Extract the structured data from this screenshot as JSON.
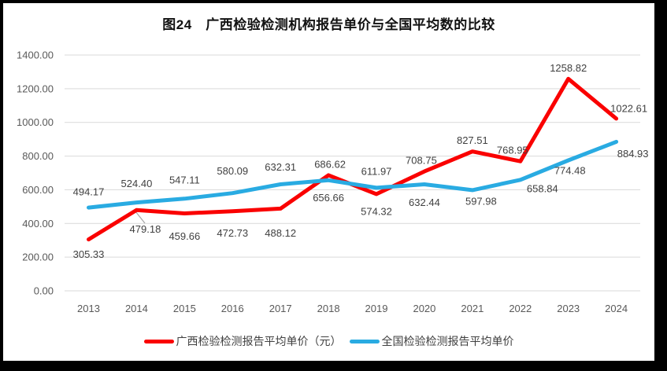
{
  "frame": {
    "border_color": "#000000",
    "background_color": "#FFFFFF"
  },
  "chart": {
    "title": "图24　广西检验检测机构报告单价与全国平均数的比较",
    "legend": [
      {
        "label": "广西检验检测报告平均单价（元）",
        "color": "#FA0000"
      },
      {
        "label": "全国检验检测报告平均单价",
        "color": "#29ABE2"
      }
    ]
  },
  "chart_data": {
    "type": "line",
    "title": "图24　广西检验检测机构报告单价与全国平均数的比较",
    "categories": [
      "2013",
      "2014",
      "2015",
      "2016",
      "2017",
      "2018",
      "2019",
      "2020",
      "2021",
      "2022",
      "2023",
      "2024"
    ],
    "series": [
      {
        "name": "广西检验检测报告平均单价（元）",
        "color": "#FA0000",
        "values": [
          305.33,
          479.18,
          459.66,
          472.73,
          488.12,
          686.62,
          574.32,
          708.75,
          827.51,
          768.95,
          1258.82,
          1022.61
        ]
      },
      {
        "name": "全国检验检测报告平均单价",
        "color": "#29ABE2",
        "values": [
          494.17,
          524.4,
          547.11,
          580.09,
          632.31,
          656.66,
          611.97,
          632.44,
          597.98,
          658.84,
          774.48,
          884.93
        ]
      }
    ],
    "ylim": [
      0,
      1400
    ],
    "y_tick_step": 200,
    "y_ticks": [
      "1400.00",
      "1200.00",
      "1000.00",
      "800.00",
      "600.00",
      "400.00",
      "200.00",
      "0.00"
    ],
    "grid": true,
    "data_labels": true,
    "data_label_decimals": 2,
    "legend_position": "bottom",
    "colors": {
      "gridline": "#D9D9D9",
      "tick_text": "#595959",
      "label_text": "#404040",
      "leader_line": "#A6A6A6"
    }
  }
}
